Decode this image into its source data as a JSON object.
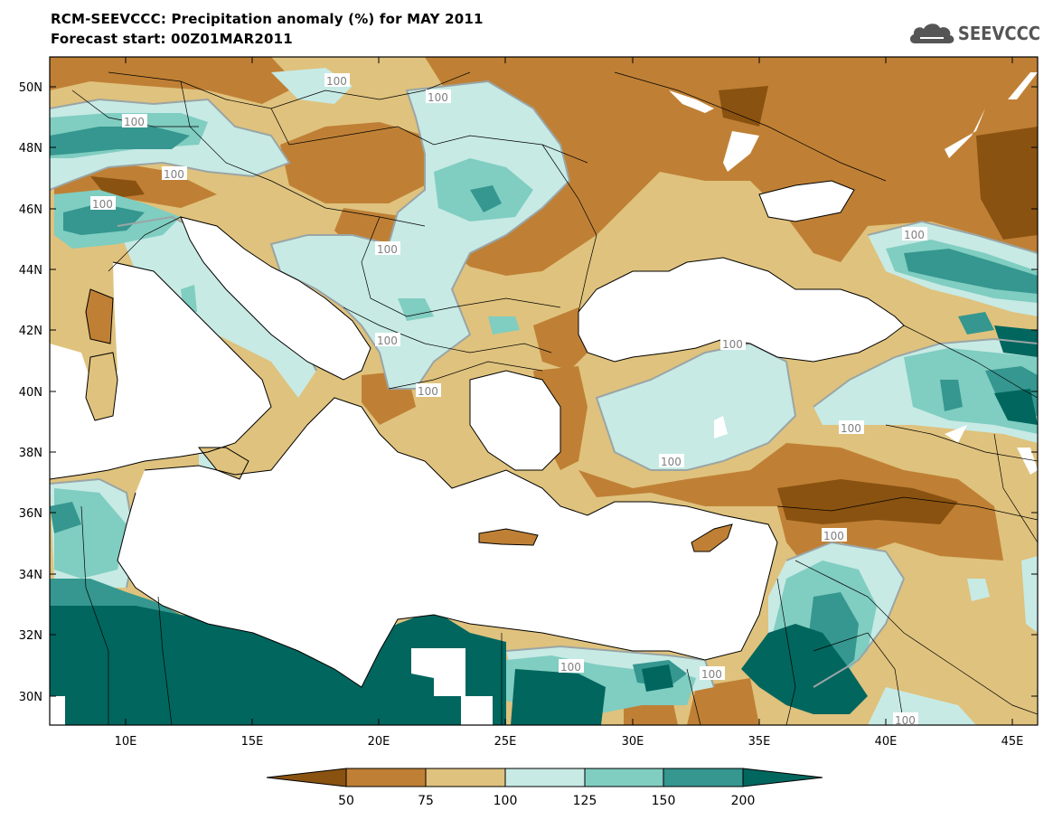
{
  "header": {
    "title_line1": "RCM-SEEVCCC: Precipitation anomaly (%) for MAY 2011",
    "title_line2": "Forecast start: 00Z01MAR2011"
  },
  "logo": {
    "text": "SEEVCCC",
    "icon": "cloud-icon",
    "color": "#555555"
  },
  "map": {
    "variable": "Precipitation anomaly (%)",
    "lon_range": [
      7,
      46
    ],
    "lat_range": [
      29,
      51
    ],
    "lat_ticks": [
      "30N",
      "32N",
      "34N",
      "36N",
      "38N",
      "40N",
      "42N",
      "44N",
      "46N",
      "48N",
      "50N"
    ],
    "lon_ticks": [
      "10E",
      "15E",
      "20E",
      "25E",
      "30E",
      "35E",
      "40E",
      "45E"
    ],
    "contour_labels": [
      "100",
      "100",
      "100",
      "100",
      "100",
      "100",
      "100",
      "100",
      "100",
      "100",
      "100",
      "100",
      "100",
      "100",
      "100"
    ]
  },
  "colorbar": {
    "levels": [
      "50",
      "75",
      "100",
      "125",
      "150",
      "200"
    ],
    "colors": [
      "#8a5210",
      "#bf8035",
      "#dfc27d",
      "#c7eae5",
      "#80cdc1",
      "#35978f",
      "#01665e"
    ]
  }
}
